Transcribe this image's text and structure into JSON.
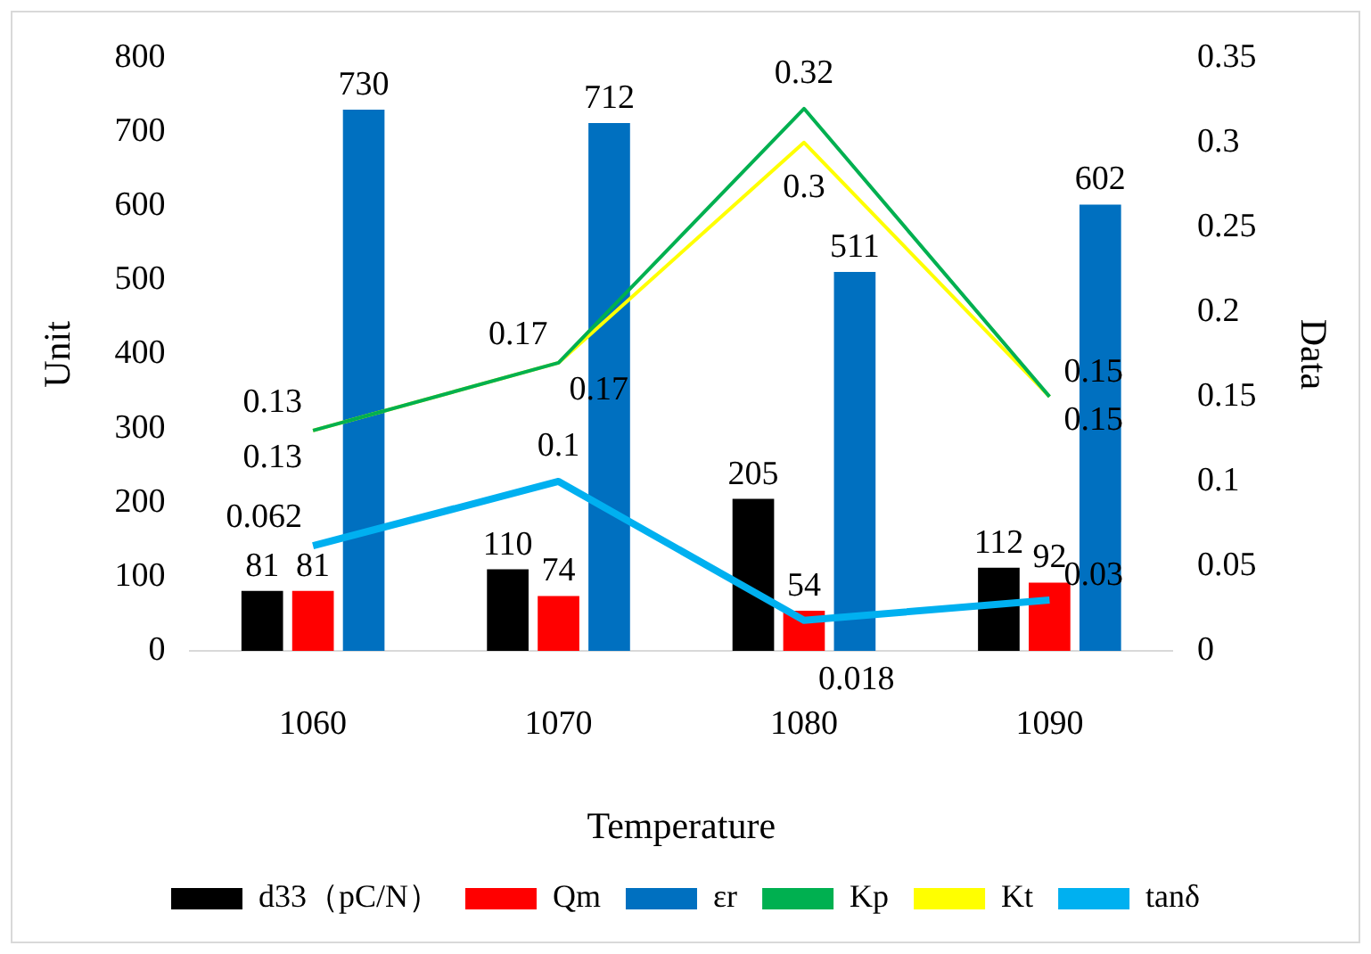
{
  "chart_data": {
    "type": "bar",
    "xlabel": "Temperature",
    "ylabel": "Unit",
    "y2label": "Data",
    "categories": [
      "1060",
      "1070",
      "1080",
      "1090"
    ],
    "series": [
      {
        "name": "d33（pC/N）",
        "color": "#000000",
        "values": [
          81,
          110,
          205,
          112
        ]
      },
      {
        "name": "Qm",
        "color": "#ff0000",
        "values": [
          81,
          74,
          54,
          92
        ]
      },
      {
        "name": "εr",
        "color": "#0070c0",
        "values": [
          730,
          712,
          511,
          602
        ]
      },
      {
        "name": "Kp",
        "type": "line",
        "axis": "y2",
        "color": "#00b050",
        "values": [
          0.13,
          0.17,
          0.32,
          0.15
        ]
      },
      {
        "name": "Kt",
        "type": "line",
        "axis": "y2",
        "color": "#ffff00",
        "values": [
          0.13,
          0.17,
          0.3,
          0.15
        ]
      },
      {
        "name": "tanδ",
        "type": "line",
        "axis": "y2",
        "color": "#00b0f0",
        "values": [
          0.062,
          0.1,
          0.018,
          0.03
        ]
      }
    ],
    "ylim": [
      0,
      800
    ],
    "yticks": [
      0,
      100,
      200,
      300,
      400,
      500,
      600,
      700,
      800
    ],
    "y2lim": [
      0,
      0.35
    ],
    "y2ticks": [
      0,
      0.05,
      0.1,
      0.15,
      0.2,
      0.25,
      0.3,
      0.35
    ],
    "grid": false,
    "legend": "bottom",
    "marker": "none",
    "data_labels": true
  }
}
